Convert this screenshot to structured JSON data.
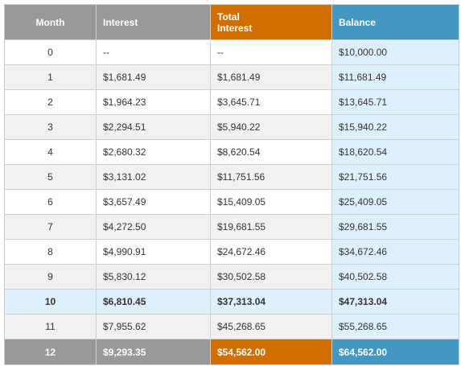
{
  "table": {
    "headers": {
      "month": "Month",
      "interest": "Interest",
      "total_interest": "Total Interest",
      "balance": "Balance"
    },
    "rows": [
      {
        "month": "0",
        "interest": "--",
        "total_interest": "--",
        "balance": "$10,000.00"
      },
      {
        "month": "1",
        "interest": "$1,681.49",
        "total_interest": "$1,681.49",
        "balance": "$11,681.49"
      },
      {
        "month": "2",
        "interest": "$1,964.23",
        "total_interest": "$3,645.71",
        "balance": "$13,645.71"
      },
      {
        "month": "3",
        "interest": "$2,294.51",
        "total_interest": "$5,940.22",
        "balance": "$15,940.22"
      },
      {
        "month": "4",
        "interest": "$2,680.32",
        "total_interest": "$8,620.54",
        "balance": "$18,620.54"
      },
      {
        "month": "5",
        "interest": "$3,131.02",
        "total_interest": "$11,751.56",
        "balance": "$21,751.56"
      },
      {
        "month": "6",
        "interest": "$3,657.49",
        "total_interest": "$15,409.05",
        "balance": "$25,409.05"
      },
      {
        "month": "7",
        "interest": "$4,272.50",
        "total_interest": "$19,681.55",
        "balance": "$29,681.55"
      },
      {
        "month": "8",
        "interest": "$4,990.91",
        "total_interest": "$24,672.46",
        "balance": "$34,672.46"
      },
      {
        "month": "9",
        "interest": "$5,830.12",
        "total_interest": "$30,502.58",
        "balance": "$40,502.58"
      },
      {
        "month": "10",
        "interest": "$6,810.45",
        "total_interest": "$37,313.04",
        "balance": "$47,313.04"
      },
      {
        "month": "11",
        "interest": "$7,955.62",
        "total_interest": "$45,268.65",
        "balance": "$55,268.65"
      },
      {
        "month": "12",
        "interest": "$9,293.35",
        "total_interest": "$54,562.00",
        "balance": "$64,562.00"
      }
    ]
  },
  "colors": {
    "header_gray": "#999999",
    "header_orange": "#d06f00",
    "header_blue": "#4398c2",
    "balance_column_bg": "#def0fb",
    "highlight_row_bg": "#def0fb",
    "alt_row_bg": "#f1f1f1"
  }
}
